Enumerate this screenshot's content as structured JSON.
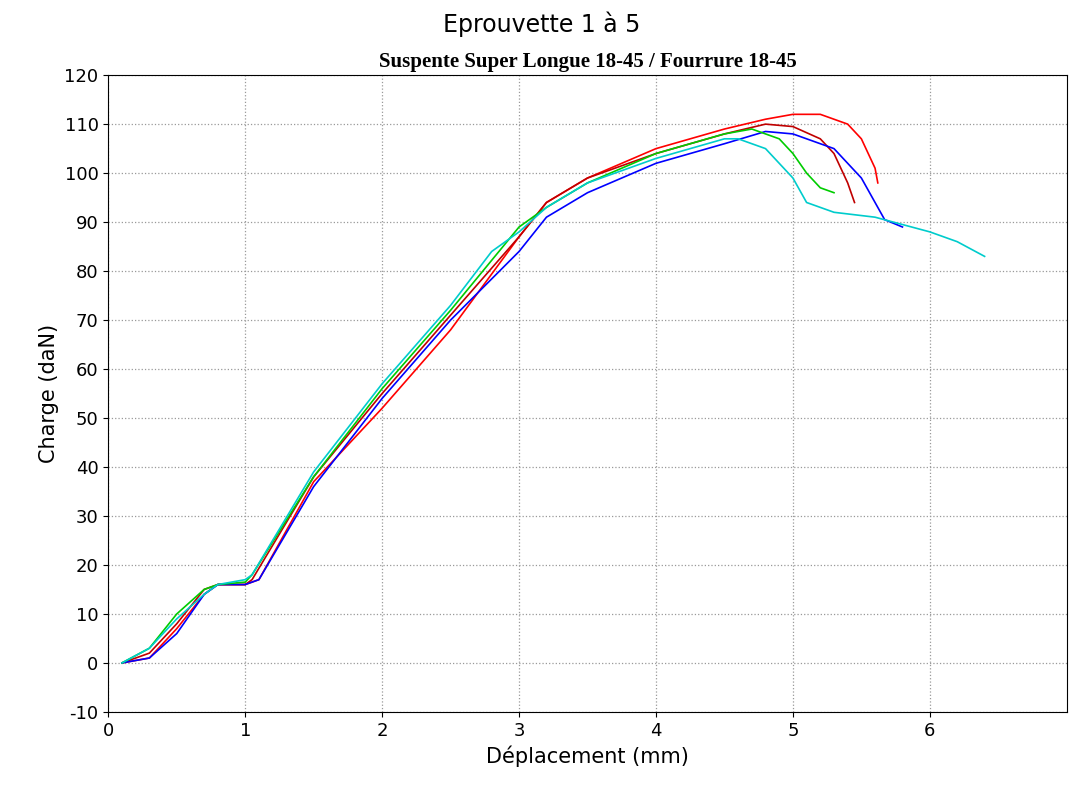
{
  "chart_data": {
    "type": "line",
    "title": "Eprouvette 1 à 5",
    "subtitle": "Suspente Super Longue 18-45 / Fourrure 18-45",
    "x_label": "Déplacement (mm)",
    "y_label": "Charge (daN)",
    "xlim": [
      0,
      7
    ],
    "xticks": [
      0,
      1,
      2,
      3,
      4,
      5,
      6
    ],
    "ylim": [
      -10,
      120
    ],
    "yticks": [
      -10,
      0,
      10,
      20,
      30,
      40,
      50,
      60,
      70,
      80,
      90,
      100,
      110,
      120
    ],
    "grid": true,
    "series": [
      {
        "color": "#ff0000",
        "x": [
          0.1,
          0.3,
          0.5,
          0.7,
          0.8,
          1.0,
          1.1,
          1.5,
          2.0,
          2.5,
          3.0,
          3.2,
          3.5,
          4.0,
          4.5,
          4.8,
          5.0,
          5.2,
          5.4,
          5.5,
          5.6,
          5.62
        ],
        "values": [
          0,
          1,
          7,
          14,
          16,
          16,
          17,
          37,
          52,
          68,
          87,
          94,
          99,
          105,
          109,
          111,
          112,
          112,
          110,
          107,
          101,
          98
        ]
      },
      {
        "color": "#c00000",
        "x": [
          0.1,
          0.3,
          0.5,
          0.7,
          0.8,
          1.0,
          1.05,
          1.5,
          2.0,
          2.5,
          3.0,
          3.2,
          3.5,
          4.0,
          4.5,
          4.8,
          5.0,
          5.2,
          5.3,
          5.4,
          5.45
        ],
        "values": [
          0,
          2,
          8,
          15,
          16,
          16,
          17,
          38,
          55,
          71,
          87,
          94,
          99,
          104,
          108,
          110,
          109.5,
          107,
          104,
          98,
          94
        ]
      },
      {
        "color": "#0000ff",
        "x": [
          0.1,
          0.3,
          0.5,
          0.7,
          0.8,
          1.0,
          1.1,
          1.5,
          2.0,
          2.5,
          3.0,
          3.2,
          3.5,
          4.0,
          4.5,
          4.8,
          5.0,
          5.3,
          5.5,
          5.67,
          5.8
        ],
        "values": [
          0,
          1,
          6,
          14,
          16,
          16,
          17,
          36,
          54,
          70,
          84,
          91,
          96,
          102,
          106,
          108.5,
          108,
          105,
          99,
          90.5,
          89
        ]
      },
      {
        "color": "#00cc00",
        "x": [
          0.1,
          0.3,
          0.5,
          0.7,
          0.8,
          1.0,
          1.05,
          1.5,
          2.0,
          2.5,
          3.0,
          3.2,
          3.5,
          4.0,
          4.5,
          4.7,
          4.9,
          5.0,
          5.1,
          5.2,
          5.3
        ],
        "values": [
          0,
          3,
          10,
          15,
          16,
          16.5,
          18,
          38,
          56,
          72,
          89,
          93,
          98,
          104,
          108,
          109,
          107,
          104,
          100,
          97,
          96
        ]
      },
      {
        "color": "#00cccc",
        "x": [
          0.1,
          0.3,
          0.5,
          0.7,
          0.8,
          1.0,
          1.05,
          1.5,
          2.0,
          2.5,
          2.8,
          3.0,
          3.2,
          3.5,
          4.0,
          4.5,
          4.6,
          4.8,
          5.0,
          5.1,
          5.3,
          5.6,
          6.0,
          6.2,
          6.4
        ],
        "values": [
          0,
          3,
          9,
          14,
          16,
          17,
          18,
          39,
          57,
          73,
          84,
          88,
          93,
          98,
          103,
          107,
          107,
          105,
          99,
          94,
          92,
          91,
          88,
          86,
          83
        ]
      }
    ]
  }
}
